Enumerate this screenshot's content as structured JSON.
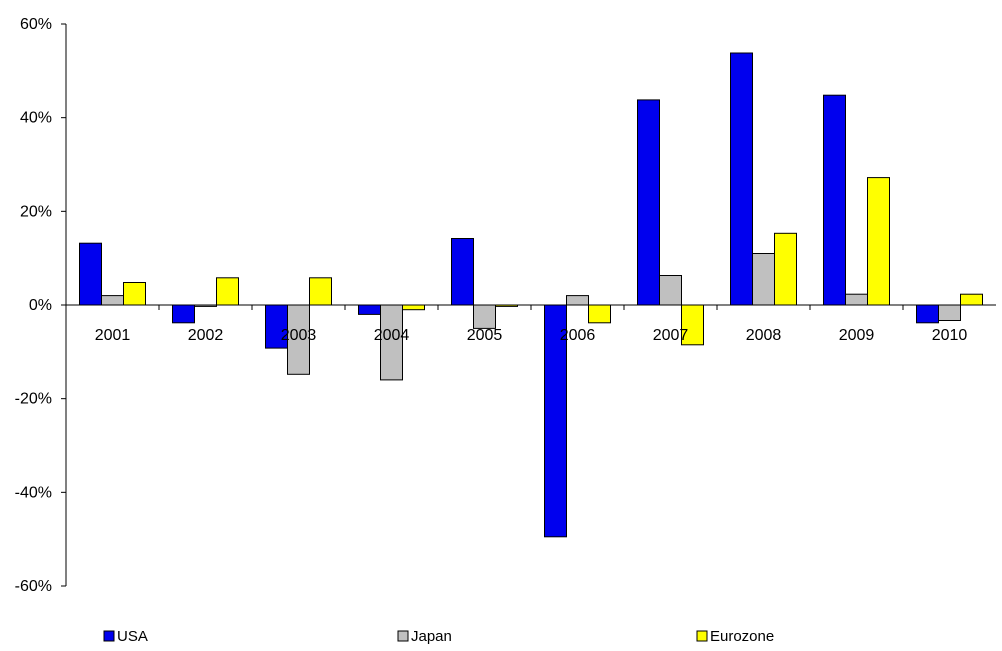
{
  "chart_data": {
    "type": "bar",
    "title": "",
    "xlabel": "",
    "ylabel": "",
    "categories": [
      "2001",
      "2002",
      "2003",
      "2004",
      "2005",
      "2006",
      "2007",
      "2008",
      "2009",
      "2010"
    ],
    "ylim": [
      -60,
      60
    ],
    "yticks": [
      60,
      40,
      20,
      0,
      -20,
      -40,
      -60
    ],
    "ytick_labels": [
      "60%",
      "40%",
      "20%",
      "0%",
      "-20%",
      "-40%",
      "-60%"
    ],
    "grid": false,
    "legend_position": "bottom",
    "series": [
      {
        "name": "USA",
        "color": "#0000ee",
        "values": [
          13.2,
          -3.8,
          -9.2,
          -2.0,
          14.2,
          -49.5,
          43.8,
          53.8,
          44.8,
          -3.8
        ]
      },
      {
        "name": "Japan",
        "color": "#c0c0c0",
        "values": [
          2.0,
          -0.3,
          -14.8,
          -16.0,
          -5.0,
          2.0,
          6.3,
          11.0,
          2.3,
          -3.3
        ]
      },
      {
        "name": "Eurozone",
        "color": "#ffff00",
        "values": [
          4.8,
          5.8,
          5.8,
          -1.0,
          -0.3,
          -3.8,
          -8.5,
          15.3,
          27.2,
          2.3
        ]
      }
    ]
  }
}
